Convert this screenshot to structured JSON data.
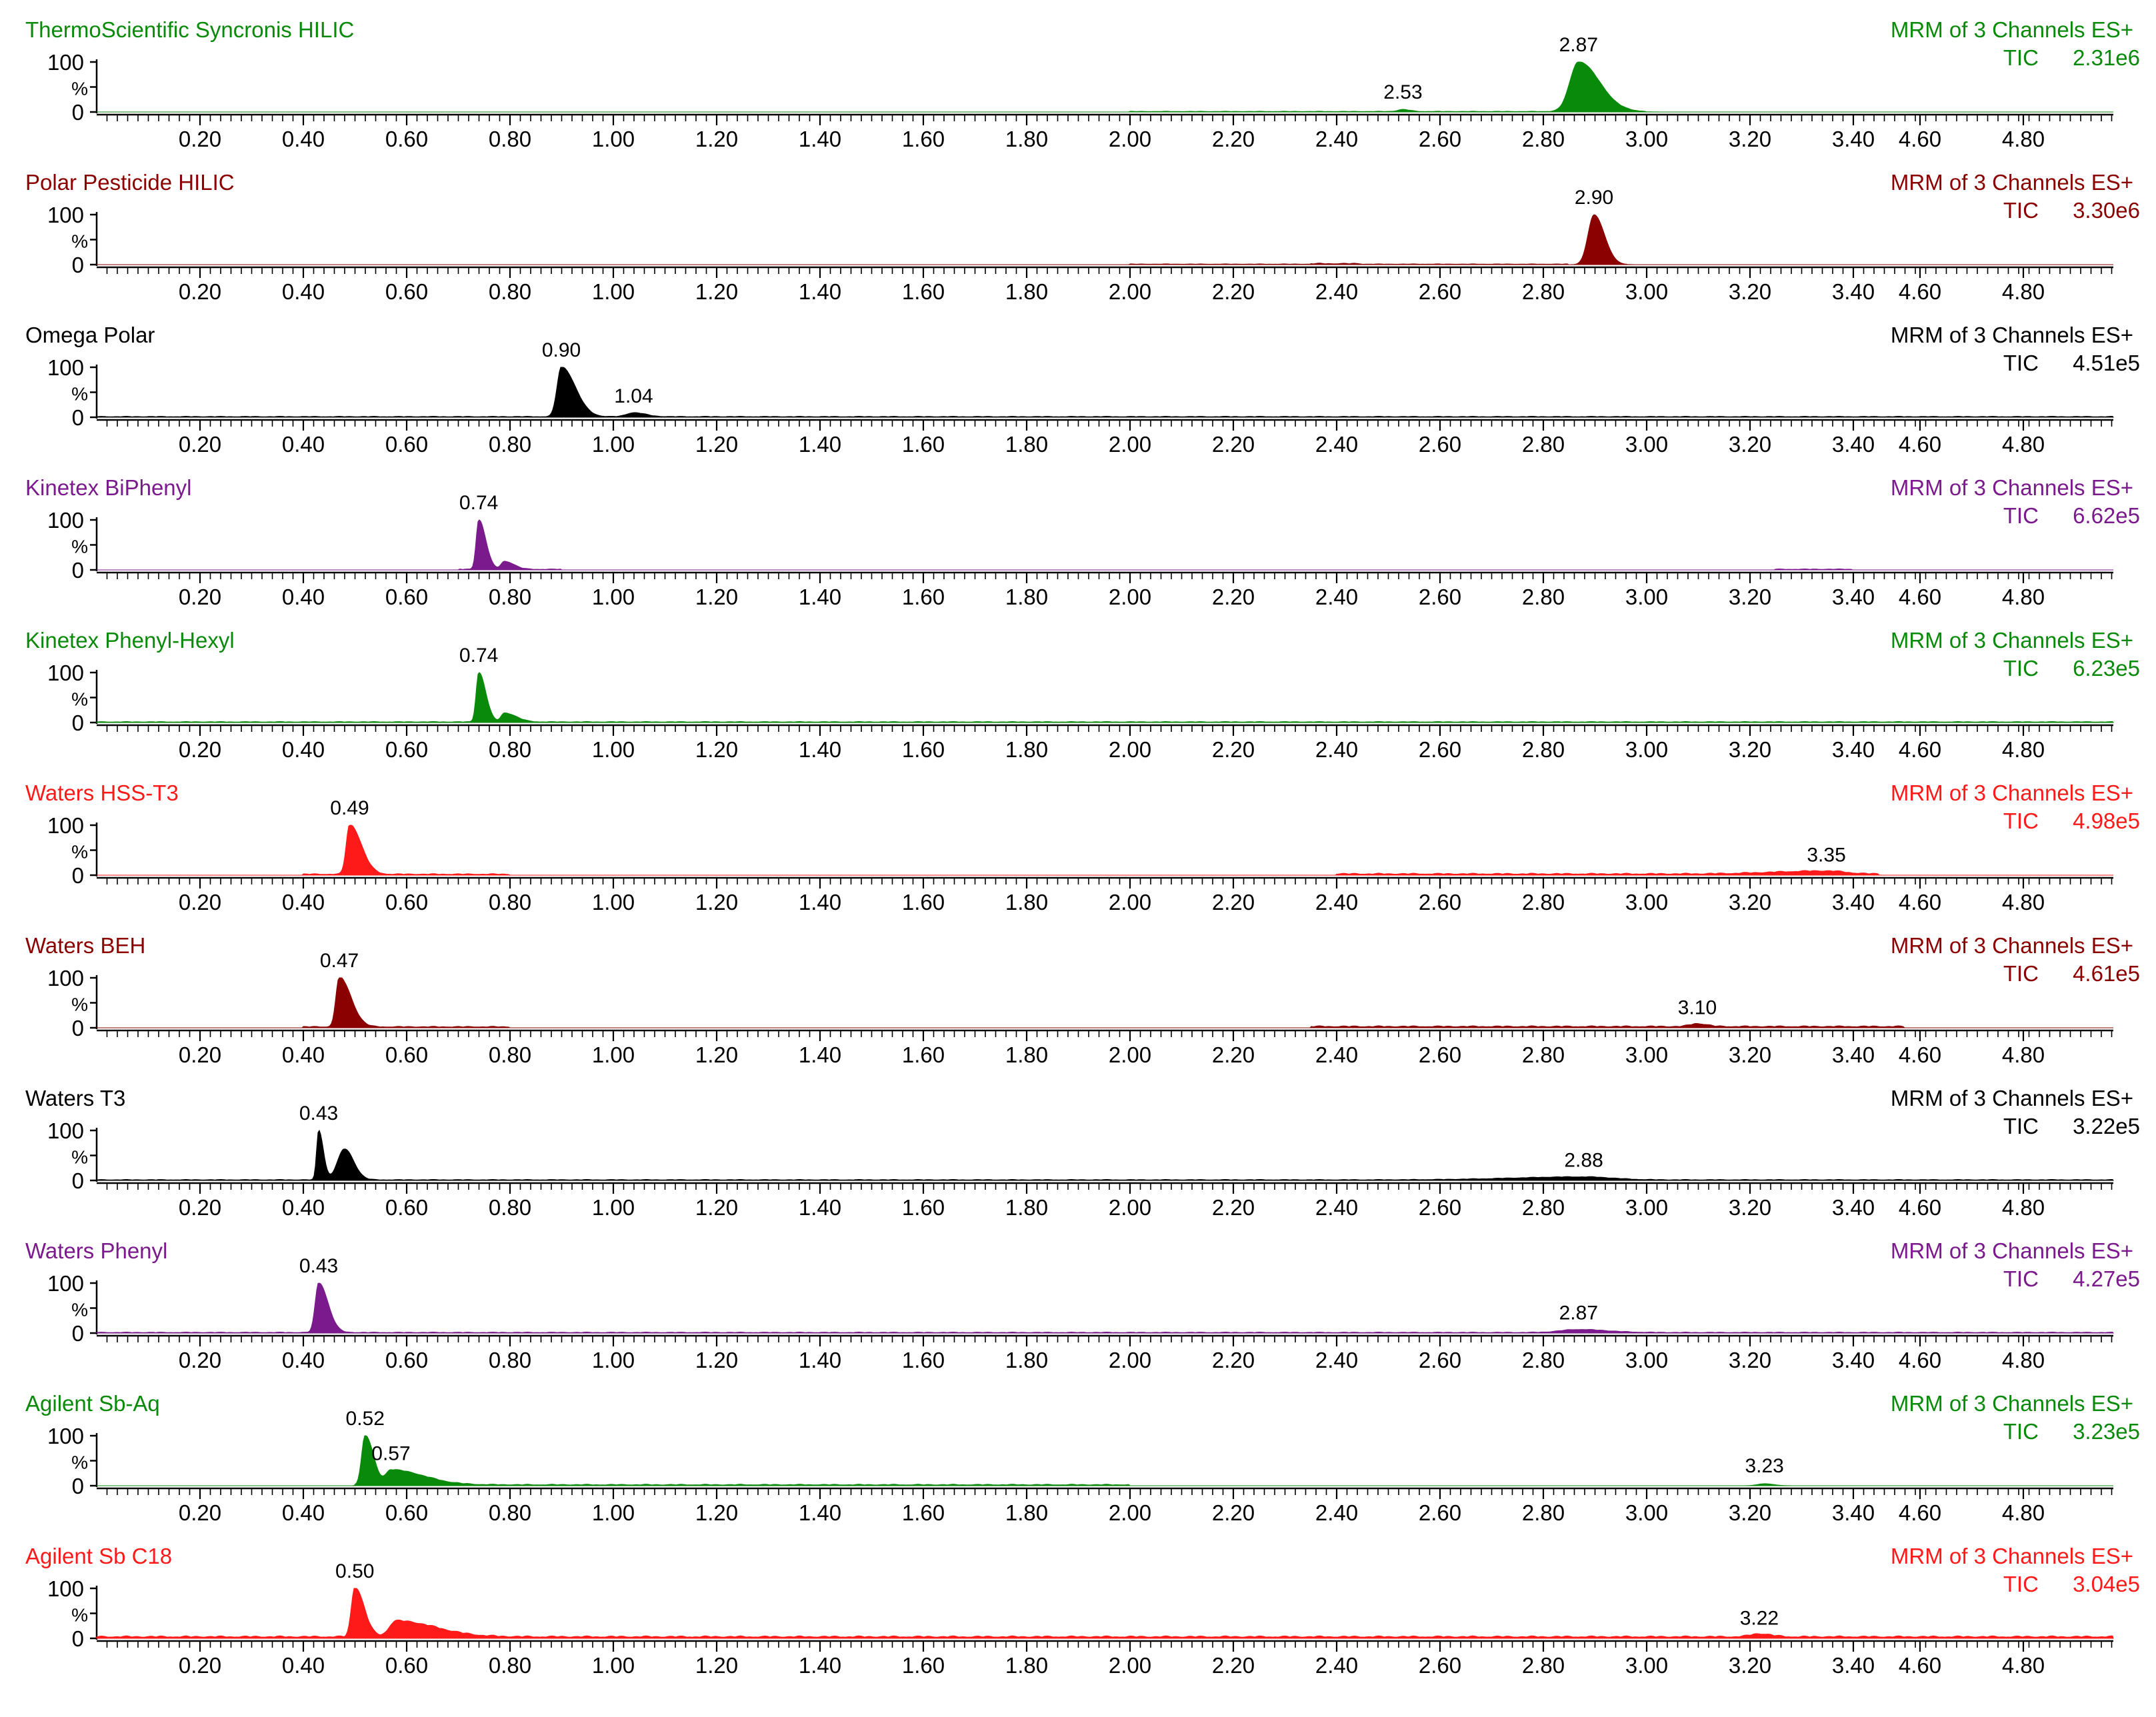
{
  "colors": {
    "green": "#0a8a0a",
    "darkred": "#8b0000",
    "black": "#000000",
    "purple": "#7b1a8c",
    "red": "#ff1a1a"
  },
  "chart_data": {
    "type": "area",
    "x_ticks": [
      "0.20",
      "0.40",
      "0.60",
      "0.80",
      "1.00",
      "1.20",
      "1.40",
      "1.60",
      "1.80",
      "2.00",
      "2.20",
      "2.40",
      "2.60",
      "2.80",
      "3.00",
      "3.20",
      "3.40",
      "4.60",
      "4.80"
    ],
    "y_ticks": [
      "100",
      "0"
    ],
    "y_unit": "%",
    "traces": [
      {
        "name": "ThermoScientific Syncronis HILIC",
        "color": "#0a8a0a",
        "mode": "MRM of 3 Channels ES+",
        "tic_label": "TIC",
        "tic": "2.31e6",
        "peaks": [
          {
            "rt": 2.87,
            "label": "2.87",
            "height": 100,
            "w_left": 0.05,
            "w_right": 0.09
          },
          {
            "rt": 2.53,
            "label": "2.53",
            "height": 4,
            "w_left": 0.03,
            "w_right": 0.03
          }
        ],
        "baseline": [
          {
            "from": 2.0,
            "to": 3.0,
            "level": 1.5
          }
        ]
      },
      {
        "name": "Polar Pesticide HILIC",
        "color": "#8b0000",
        "mode": "MRM of 3 Channels ES+",
        "tic_label": "TIC",
        "tic": "3.30e6",
        "peaks": [
          {
            "rt": 2.9,
            "label": "2.90",
            "height": 100,
            "w_left": 0.035,
            "w_right": 0.045
          }
        ],
        "baseline": [
          {
            "from": 2.0,
            "to": 2.85,
            "level": 1.5
          },
          {
            "from": 2.35,
            "to": 2.45,
            "level": 3
          }
        ]
      },
      {
        "name": "Omega Polar",
        "color": "#000000",
        "mode": "MRM of 3 Channels ES+",
        "tic_label": "TIC",
        "tic": "4.51e5",
        "peaks": [
          {
            "rt": 0.9,
            "label": "0.90",
            "height": 100,
            "w_left": 0.025,
            "w_right": 0.06
          },
          {
            "rt": 1.04,
            "label": "1.04",
            "height": 8,
            "w_left": 0.04,
            "w_right": 0.05
          }
        ],
        "baseline": [
          {
            "from": 0.0,
            "to": 4.95,
            "level": 2
          }
        ]
      },
      {
        "name": "Kinetex BiPhenyl",
        "color": "#7b1a8c",
        "mode": "MRM of 3 Channels ES+",
        "tic_label": "TIC",
        "tic": "6.62e5",
        "peaks": [
          {
            "rt": 0.74,
            "label": "0.74",
            "height": 100,
            "w_left": 0.015,
            "w_right": 0.03
          },
          {
            "rt": 0.79,
            "label": "",
            "height": 16,
            "w_left": 0.02,
            "w_right": 0.04
          }
        ],
        "baseline": [
          {
            "from": 0.7,
            "to": 0.9,
            "level": 2
          },
          {
            "from": 3.25,
            "to": 3.4,
            "level": 2
          }
        ]
      },
      {
        "name": "Kinetex Phenyl-Hexyl",
        "color": "#0a8a0a",
        "mode": "MRM of 3 Channels ES+",
        "tic_label": "TIC",
        "tic": "6.23e5",
        "peaks": [
          {
            "rt": 0.74,
            "label": "0.74",
            "height": 100,
            "w_left": 0.015,
            "w_right": 0.03
          },
          {
            "rt": 0.79,
            "label": "",
            "height": 18,
            "w_left": 0.02,
            "w_right": 0.05
          }
        ],
        "baseline": [
          {
            "from": 0.0,
            "to": 4.95,
            "level": 2
          }
        ]
      },
      {
        "name": "Waters HSS-T3",
        "color": "#ff1a1a",
        "mode": "MRM of 3 Channels ES+",
        "tic_label": "TIC",
        "tic": "4.98e5",
        "peaks": [
          {
            "rt": 0.49,
            "label": "0.49",
            "height": 100,
            "w_left": 0.02,
            "w_right": 0.05
          },
          {
            "rt": 3.35,
            "label": "3.35",
            "height": 6,
            "w_left": 0.3,
            "w_right": 0.08
          }
        ],
        "baseline": [
          {
            "from": 0.4,
            "to": 0.8,
            "level": 3
          },
          {
            "from": 2.4,
            "to": 3.45,
            "level": 4
          }
        ]
      },
      {
        "name": "Waters BEH",
        "color": "#8b0000",
        "mode": "MRM of 3 Channels ES+",
        "tic_label": "TIC",
        "tic": "4.61e5",
        "peaks": [
          {
            "rt": 0.47,
            "label": "0.47",
            "height": 100,
            "w_left": 0.02,
            "w_right": 0.05
          },
          {
            "rt": 3.1,
            "label": "3.10",
            "height": 6,
            "w_left": 0.04,
            "w_right": 0.04
          }
        ],
        "baseline": [
          {
            "from": 0.4,
            "to": 0.8,
            "level": 3
          },
          {
            "from": 2.35,
            "to": 3.5,
            "level": 4
          }
        ]
      },
      {
        "name": "Waters T3",
        "color": "#000000",
        "mode": "MRM of 3 Channels ES+",
        "tic_label": "TIC",
        "tic": "3.22e5",
        "peaks": [
          {
            "rt": 0.43,
            "label": "0.43",
            "height": 100,
            "w_left": 0.012,
            "w_right": 0.02
          },
          {
            "rt": 0.48,
            "label": "",
            "height": 62,
            "w_left": 0.04,
            "w_right": 0.04
          },
          {
            "rt": 2.88,
            "label": "2.88",
            "height": 6,
            "w_left": 0.4,
            "w_right": 0.12
          }
        ],
        "baseline": [
          {
            "from": 0.0,
            "to": 4.95,
            "level": 2
          }
        ]
      },
      {
        "name": "Waters Phenyl",
        "color": "#7b1a8c",
        "mode": "MRM of 3 Channels ES+",
        "tic_label": "TIC",
        "tic": "4.27e5",
        "peaks": [
          {
            "rt": 0.43,
            "label": "0.43",
            "height": 100,
            "w_left": 0.02,
            "w_right": 0.04
          },
          {
            "rt": 2.87,
            "label": "2.87",
            "height": 6,
            "w_left": 0.1,
            "w_right": 0.12
          }
        ],
        "baseline": [
          {
            "from": 0.0,
            "to": 4.95,
            "level": 2
          }
        ]
      },
      {
        "name": "Agilent Sb-Aq",
        "color": "#0a8a0a",
        "mode": "MRM of 3 Channels ES+",
        "tic_label": "TIC",
        "tic": "3.23e5",
        "peaks": [
          {
            "rt": 0.52,
            "label": "0.52",
            "height": 100,
            "w_left": 0.02,
            "w_right": 0.035
          },
          {
            "rt": 0.57,
            "label": "0.57",
            "height": 30,
            "w_left": 0.03,
            "w_right": 0.14
          },
          {
            "rt": 3.23,
            "label": "3.23",
            "height": 4,
            "w_left": 0.04,
            "w_right": 0.04
          }
        ],
        "baseline": [
          {
            "from": 0.5,
            "to": 2.0,
            "level": 3
          }
        ]
      },
      {
        "name": "Agilent Sb C18",
        "color": "#ff1a1a",
        "mode": "MRM of 3 Channels ES+",
        "tic_label": "TIC",
        "tic": "3.04e5",
        "peaks": [
          {
            "rt": 0.5,
            "label": "0.50",
            "height": 100,
            "w_left": 0.02,
            "w_right": 0.04
          },
          {
            "rt": 0.58,
            "label": "",
            "height": 32,
            "w_left": 0.04,
            "w_right": 0.17
          },
          {
            "rt": 3.22,
            "label": "3.22",
            "height": 6,
            "w_left": 0.05,
            "w_right": 0.05
          }
        ],
        "baseline": [
          {
            "from": 0.0,
            "to": 4.95,
            "level": 5
          }
        ]
      }
    ]
  }
}
